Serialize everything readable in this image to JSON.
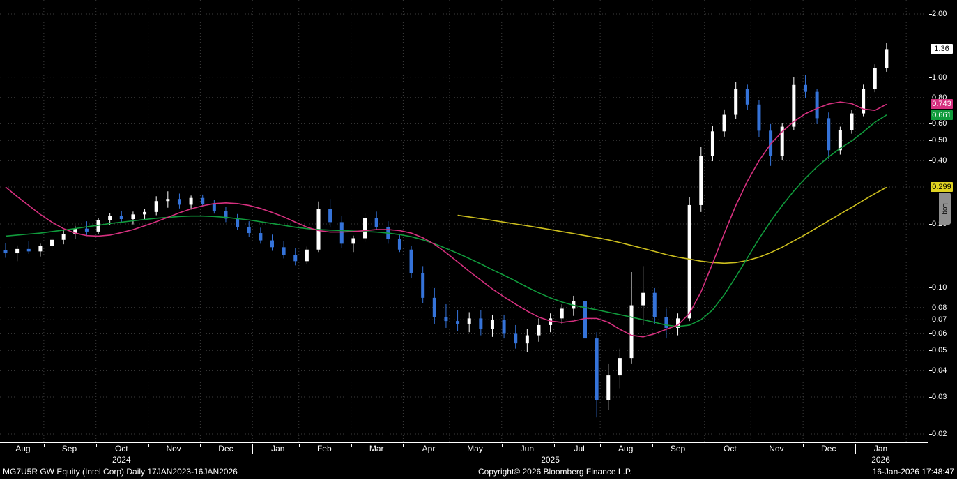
{
  "footer": {
    "left": "MG7U5R GW Equity (Intel Corp) Daily 17JAN2023-16JAN2026",
    "center": "Copyright© 2026 Bloomberg Finance L.P.",
    "right": "16-Jan-2026 17:48:47"
  },
  "colors": {
    "background": "#000000",
    "grid": "#3d3d3d",
    "axis": "#ffffff",
    "up_candle": "#ffffff",
    "down_candle": "#3573d9",
    "ma1": "#d6307f",
    "ma2": "#109b3c",
    "ma3": "#cdbf1e"
  },
  "y_axis": {
    "scale": "log",
    "log_tab_label": "Log",
    "ticks": [
      {
        "label": "2.00",
        "value": 2.0
      },
      {
        "label": "1.00",
        "value": 1.0
      },
      {
        "label": "0.80",
        "value": 0.8
      },
      {
        "label": "0.60",
        "value": 0.6
      },
      {
        "label": "0.50",
        "value": 0.5
      },
      {
        "label": "0.40",
        "value": 0.4
      },
      {
        "label": "0.20",
        "value": 0.2
      },
      {
        "label": "0.10",
        "value": 0.1
      },
      {
        "label": "0.08",
        "value": 0.08
      },
      {
        "label": "0.07",
        "value": 0.07
      },
      {
        "label": "0.06",
        "value": 0.06
      },
      {
        "label": "0.05",
        "value": 0.05
      },
      {
        "label": "0.04",
        "value": 0.04
      },
      {
        "label": "0.03",
        "value": 0.03
      },
      {
        "label": "0.02",
        "value": 0.02
      }
    ],
    "grid_values": [
      2.0,
      1.0,
      0.8,
      0.6,
      0.5,
      0.4,
      0.3,
      0.2,
      0.1,
      0.08,
      0.07,
      0.06,
      0.05,
      0.04,
      0.03,
      0.02
    ],
    "badges": [
      {
        "name": "last-price-badge",
        "label": "1.36",
        "value": 1.36,
        "bg": "#ffffff",
        "fg": "#000000"
      },
      {
        "name": "ma1-price-badge",
        "label": "0.743",
        "value": 0.743,
        "bg": "#d6307f",
        "fg": "#ffffff"
      },
      {
        "name": "ma2-price-badge",
        "label": "0.661",
        "value": 0.661,
        "bg": "#109b3c",
        "fg": "#ffffff"
      },
      {
        "name": "ma3-price-badge",
        "label": "0.299",
        "value": 0.299,
        "bg": "#e0d321",
        "fg": "#000000"
      }
    ]
  },
  "x_axis": {
    "months": [
      {
        "label": "Aug",
        "pos": 1.5
      },
      {
        "label": "Sep",
        "pos": 5.5
      },
      {
        "label": "Oct",
        "pos": 10
      },
      {
        "label": "Nov",
        "pos": 14.5
      },
      {
        "label": "Dec",
        "pos": 19
      },
      {
        "label": "Jan",
        "pos": 23.5
      },
      {
        "label": "Feb",
        "pos": 27.5
      },
      {
        "label": "Mar",
        "pos": 32
      },
      {
        "label": "Apr",
        "pos": 36.5
      },
      {
        "label": "May",
        "pos": 40.5
      },
      {
        "label": "Jun",
        "pos": 45
      },
      {
        "label": "Jul",
        "pos": 49.5
      },
      {
        "label": "Aug",
        "pos": 53.5
      },
      {
        "label": "Sep",
        "pos": 58
      },
      {
        "label": "Oct",
        "pos": 62.5
      },
      {
        "label": "Nov",
        "pos": 66.5
      },
      {
        "label": "Dec",
        "pos": 71
      },
      {
        "label": "Jan",
        "pos": 75.5
      }
    ],
    "years": [
      {
        "label": "2024",
        "pos": 10
      },
      {
        "label": "2025",
        "pos": 47
      },
      {
        "label": "2026",
        "pos": 75.5
      }
    ]
  },
  "chart_data": {
    "type": "candlestick",
    "title": "MG7U5R GW Equity (Intel Corp) Daily 17JAN2023-16JAN2026",
    "yscale": "log",
    "ylim": [
      0.02,
      2.0
    ],
    "x_unit": "weekly samples, Aug 2024 - 16 Jan 2026",
    "last_price": 1.36,
    "up_color": "#ffffff",
    "down_color": "#3573d9",
    "candles": [
      [
        0.15,
        0.162,
        0.138,
        0.145
      ],
      [
        0.145,
        0.158,
        0.133,
        0.152
      ],
      [
        0.152,
        0.166,
        0.144,
        0.148
      ],
      [
        0.148,
        0.161,
        0.14,
        0.157
      ],
      [
        0.157,
        0.172,
        0.15,
        0.168
      ],
      [
        0.168,
        0.186,
        0.16,
        0.179
      ],
      [
        0.179,
        0.196,
        0.17,
        0.19
      ],
      [
        0.19,
        0.206,
        0.177,
        0.184
      ],
      [
        0.184,
        0.214,
        0.179,
        0.209
      ],
      [
        0.209,
        0.226,
        0.197,
        0.218
      ],
      [
        0.218,
        0.231,
        0.204,
        0.211
      ],
      [
        0.211,
        0.229,
        0.199,
        0.222
      ],
      [
        0.222,
        0.236,
        0.209,
        0.228
      ],
      [
        0.228,
        0.271,
        0.22,
        0.257
      ],
      [
        0.257,
        0.286,
        0.239,
        0.263
      ],
      [
        0.263,
        0.279,
        0.237,
        0.247
      ],
      [
        0.247,
        0.273,
        0.234,
        0.266
      ],
      [
        0.266,
        0.276,
        0.241,
        0.249
      ],
      [
        0.249,
        0.261,
        0.224,
        0.231
      ],
      [
        0.231,
        0.241,
        0.204,
        0.212
      ],
      [
        0.212,
        0.223,
        0.187,
        0.194
      ],
      [
        0.194,
        0.206,
        0.174,
        0.181
      ],
      [
        0.181,
        0.192,
        0.161,
        0.167
      ],
      [
        0.167,
        0.178,
        0.149,
        0.155
      ],
      [
        0.155,
        0.166,
        0.137,
        0.142
      ],
      [
        0.142,
        0.153,
        0.127,
        0.133
      ],
      [
        0.133,
        0.156,
        0.129,
        0.151
      ],
      [
        0.151,
        0.256,
        0.147,
        0.236
      ],
      [
        0.236,
        0.263,
        0.194,
        0.204
      ],
      [
        0.204,
        0.219,
        0.154,
        0.161
      ],
      [
        0.161,
        0.176,
        0.147,
        0.171
      ],
      [
        0.171,
        0.226,
        0.164,
        0.214
      ],
      [
        0.214,
        0.229,
        0.187,
        0.194
      ],
      [
        0.194,
        0.206,
        0.161,
        0.169
      ],
      [
        0.169,
        0.179,
        0.147,
        0.151
      ],
      [
        0.151,
        0.157,
        0.111,
        0.117
      ],
      [
        0.117,
        0.126,
        0.084,
        0.089
      ],
      [
        0.089,
        0.099,
        0.067,
        0.072
      ],
      [
        0.072,
        0.083,
        0.064,
        0.069
      ],
      [
        0.069,
        0.078,
        0.062,
        0.067
      ],
      [
        0.067,
        0.076,
        0.061,
        0.071
      ],
      [
        0.071,
        0.078,
        0.059,
        0.063
      ],
      [
        0.063,
        0.074,
        0.058,
        0.07
      ],
      [
        0.07,
        0.074,
        0.057,
        0.06
      ],
      [
        0.06,
        0.066,
        0.051,
        0.054
      ],
      [
        0.054,
        0.063,
        0.049,
        0.059
      ],
      [
        0.059,
        0.071,
        0.055,
        0.066
      ],
      [
        0.066,
        0.075,
        0.061,
        0.071
      ],
      [
        0.071,
        0.083,
        0.067,
        0.079
      ],
      [
        0.079,
        0.091,
        0.073,
        0.086
      ],
      [
        0.086,
        0.093,
        0.054,
        0.057
      ],
      [
        0.057,
        0.061,
        0.024,
        0.029
      ],
      [
        0.029,
        0.043,
        0.026,
        0.038
      ],
      [
        0.038,
        0.051,
        0.033,
        0.046
      ],
      [
        0.046,
        0.118,
        0.043,
        0.082
      ],
      [
        0.082,
        0.126,
        0.066,
        0.094
      ],
      [
        0.094,
        0.099,
        0.067,
        0.072
      ],
      [
        0.072,
        0.079,
        0.057,
        0.064
      ],
      [
        0.064,
        0.075,
        0.059,
        0.071
      ],
      [
        0.071,
        0.268,
        0.069,
        0.246
      ],
      [
        0.246,
        0.465,
        0.228,
        0.422
      ],
      [
        0.422,
        0.585,
        0.398,
        0.552
      ],
      [
        0.552,
        0.702,
        0.521,
        0.662
      ],
      [
        0.662,
        0.952,
        0.631,
        0.878
      ],
      [
        0.878,
        0.921,
        0.698,
        0.741
      ],
      [
        0.741,
        0.779,
        0.518,
        0.556
      ],
      [
        0.556,
        0.598,
        0.378,
        0.421
      ],
      [
        0.421,
        0.602,
        0.401,
        0.581
      ],
      [
        0.581,
        1.004,
        0.561,
        0.918
      ],
      [
        0.918,
        1.021,
        0.798,
        0.851
      ],
      [
        0.851,
        0.882,
        0.598,
        0.638
      ],
      [
        0.638,
        0.679,
        0.408,
        0.449
      ],
      [
        0.449,
        0.581,
        0.428,
        0.558
      ],
      [
        0.558,
        0.701,
        0.538,
        0.672
      ],
      [
        0.672,
        0.921,
        0.652,
        0.881
      ],
      [
        0.881,
        1.152,
        0.848,
        1.102
      ],
      [
        1.102,
        1.452,
        1.061,
        1.36
      ]
    ],
    "series": [
      {
        "name": "moving-average-fast",
        "color": "#d6307f",
        "last": 0.743,
        "values": [
          0.3,
          0.27,
          0.245,
          0.222,
          0.204,
          0.19,
          0.181,
          0.176,
          0.175,
          0.177,
          0.182,
          0.188,
          0.196,
          0.205,
          0.215,
          0.226,
          0.236,
          0.244,
          0.25,
          0.252,
          0.25,
          0.245,
          0.237,
          0.227,
          0.216,
          0.204,
          0.193,
          0.186,
          0.183,
          0.183,
          0.184,
          0.186,
          0.188,
          0.188,
          0.186,
          0.181,
          0.172,
          0.16,
          0.146,
          0.132,
          0.119,
          0.108,
          0.098,
          0.09,
          0.083,
          0.077,
          0.072,
          0.069,
          0.068,
          0.069,
          0.071,
          0.071,
          0.068,
          0.063,
          0.059,
          0.058,
          0.06,
          0.063,
          0.066,
          0.075,
          0.095,
          0.13,
          0.18,
          0.245,
          0.32,
          0.4,
          0.48,
          0.55,
          0.615,
          0.67,
          0.71,
          0.745,
          0.762,
          0.748,
          0.705,
          0.695,
          0.743
        ]
      },
      {
        "name": "moving-average-mid",
        "color": "#109b3c",
        "last": 0.661,
        "values": [
          0.175,
          0.177,
          0.179,
          0.181,
          0.184,
          0.187,
          0.19,
          0.194,
          0.197,
          0.201,
          0.204,
          0.207,
          0.21,
          0.213,
          0.215,
          0.217,
          0.218,
          0.218,
          0.217,
          0.215,
          0.212,
          0.209,
          0.205,
          0.201,
          0.197,
          0.193,
          0.19,
          0.188,
          0.187,
          0.186,
          0.185,
          0.184,
          0.183,
          0.181,
          0.178,
          0.174,
          0.168,
          0.161,
          0.153,
          0.145,
          0.137,
          0.129,
          0.121,
          0.114,
          0.107,
          0.1,
          0.094,
          0.089,
          0.085,
          0.082,
          0.08,
          0.078,
          0.076,
          0.074,
          0.072,
          0.07,
          0.068,
          0.066,
          0.065,
          0.066,
          0.07,
          0.078,
          0.092,
          0.112,
          0.138,
          0.17,
          0.206,
          0.245,
          0.287,
          0.33,
          0.374,
          0.417,
          0.458,
          0.497,
          0.549,
          0.61,
          0.661
        ]
      },
      {
        "name": "moving-average-slow",
        "color": "#cdbf1e",
        "last": 0.299,
        "values": [
          null,
          null,
          null,
          null,
          null,
          null,
          null,
          null,
          null,
          null,
          null,
          null,
          null,
          null,
          null,
          null,
          null,
          null,
          null,
          null,
          null,
          null,
          null,
          null,
          null,
          null,
          null,
          null,
          null,
          null,
          null,
          null,
          null,
          null,
          null,
          null,
          null,
          null,
          null,
          0.22,
          0.216,
          0.212,
          0.208,
          0.204,
          0.2,
          0.196,
          0.192,
          0.188,
          0.184,
          0.18,
          0.176,
          0.172,
          0.168,
          0.163,
          0.158,
          0.153,
          0.148,
          0.143,
          0.139,
          0.136,
          0.133,
          0.131,
          0.13,
          0.131,
          0.134,
          0.139,
          0.146,
          0.155,
          0.166,
          0.178,
          0.192,
          0.207,
          0.223,
          0.24,
          0.259,
          0.279,
          0.299
        ]
      }
    ]
  }
}
